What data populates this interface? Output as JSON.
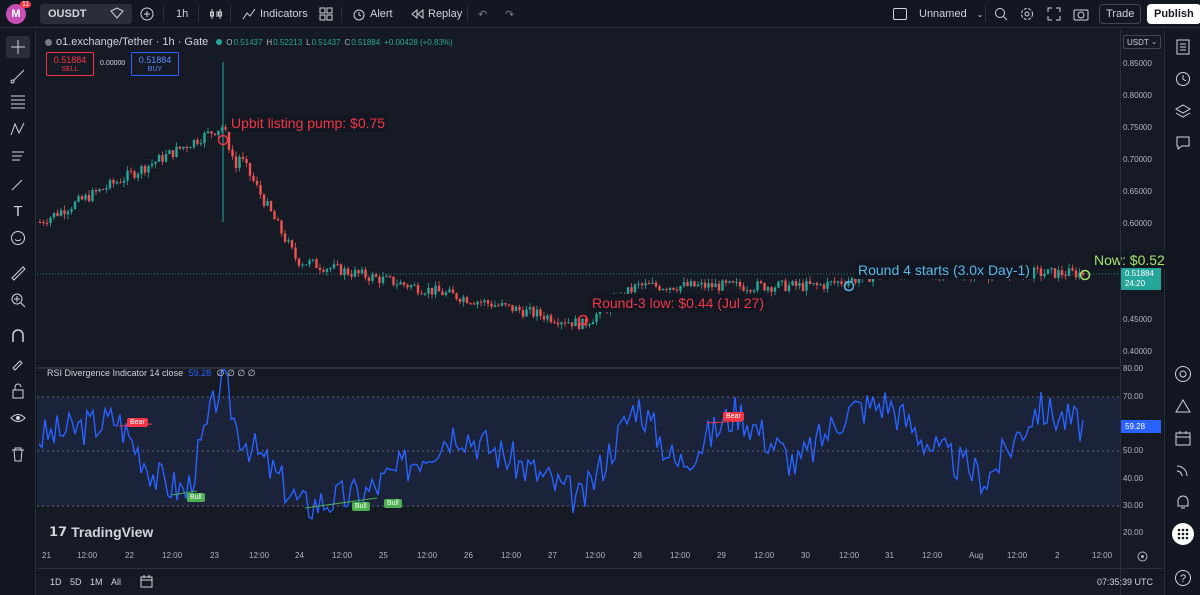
{
  "topbar": {
    "avatar_letter": "M",
    "avatar_badge": "11",
    "symbol": "OUSDT",
    "interval": "1h",
    "indicators": "Indicators",
    "alert": "Alert",
    "replay": "Replay",
    "layout_name": "Unnamed",
    "trade": "Trade",
    "publish": "Publish"
  },
  "legend": {
    "title": "o1.exchange/Tether · 1h · Gate",
    "o_label": "O",
    "o": "0.51437",
    "h_label": "H",
    "h": "0.52213",
    "l_label": "L",
    "l": "0.51437",
    "c_label": "C",
    "c": "0.51884",
    "change": "+0.00428 (+0.83%)",
    "sell_price": "0.51884",
    "sell_label": "SELL",
    "spread": "0.00000",
    "buy_price": "0.51884",
    "buy_label": "BUY"
  },
  "indicator": {
    "title": "RSI Divergence Indicator 14 close",
    "value": "59.28",
    "flags": "∅ ∅ ∅ ∅",
    "tags": {
      "bear": "Bear",
      "bull": "Bull"
    }
  },
  "annotations": [
    {
      "text": "Upbit listing pump: $0.75",
      "color": "#f23645"
    },
    {
      "text": "Round-3 low: $0.44 (Jul 27)",
      "color": "#f23645"
    },
    {
      "text": "Round 4 starts (3.0x Day-1)",
      "color": "#5bb7e8"
    },
    {
      "text": "Now: $0.52",
      "color": "#a5e36a"
    }
  ],
  "price_axis": {
    "currency": "USDT",
    "labels": [
      "0.85000",
      "0.80000",
      "0.75000",
      "0.70000",
      "0.65000",
      "0.60000",
      "0.45000",
      "0.40000"
    ],
    "current": "0.51884",
    "countdown": "24:20"
  },
  "rsi_axis": {
    "labels": [
      "80.00",
      "70.00",
      "50.00",
      "40.00",
      "30.00",
      "20.00"
    ],
    "current": "59.28"
  },
  "time_axis": [
    "21",
    "12:00",
    "22",
    "12:00",
    "23",
    "12:00",
    "24",
    "12:00",
    "25",
    "12:00",
    "26",
    "12:00",
    "27",
    "12:00",
    "28",
    "12:00",
    "29",
    "12:00",
    "30",
    "12:00",
    "31",
    "12:00",
    "Aug",
    "12:00",
    "2",
    "12:00"
  ],
  "bottom": {
    "ranges": [
      "1D",
      "5D",
      "1M",
      "All"
    ],
    "clock": "07:35:39 UTC",
    "watermark": "TradingView"
  },
  "colors": {
    "up": "#26a69a",
    "down": "#ef5350",
    "rsi": "#2962ff",
    "bear": "#f23645",
    "bull": "#4caf50",
    "accent": "#2962ff"
  },
  "chart_data": {
    "type": "candlestick",
    "title": "o1.exchange/Tether · 1h · Gate",
    "x_range": [
      "Jul 21",
      "Aug 2"
    ],
    "ylim": [
      0.4,
      0.85
    ],
    "key_points": [
      {
        "time": "Jul 21",
        "price": 0.6
      },
      {
        "time": "Jul 23",
        "price": 0.75
      },
      {
        "time": "Jul 24",
        "price": 0.54
      },
      {
        "time": "Jul 27",
        "price": 0.44
      },
      {
        "time": "Jul 28",
        "price": 0.5
      },
      {
        "time": "Jul 30",
        "price": 0.5
      },
      {
        "time": "Jul 31",
        "price": 0.52
      },
      {
        "time": "Aug 2",
        "price": 0.52
      }
    ],
    "rsi": {
      "name": "RSI 14",
      "ylim": [
        20,
        80
      ],
      "bands": [
        30,
        50,
        70
      ],
      "last": 59.28
    }
  }
}
